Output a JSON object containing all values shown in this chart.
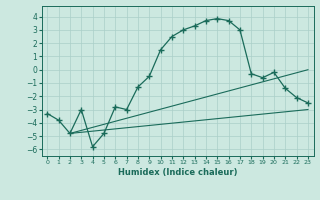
{
  "xlabel": "Humidex (Indice chaleur)",
  "ylabel": "",
  "xlim": [
    -0.5,
    23.5
  ],
  "ylim": [
    -6.5,
    4.8
  ],
  "xticks": [
    0,
    1,
    2,
    3,
    4,
    5,
    6,
    7,
    8,
    9,
    10,
    11,
    12,
    13,
    14,
    15,
    16,
    17,
    18,
    19,
    20,
    21,
    22,
    23
  ],
  "yticks": [
    -6,
    -5,
    -4,
    -3,
    -2,
    -1,
    0,
    1,
    2,
    3,
    4
  ],
  "bg_color": "#cce8e0",
  "line_color": "#1a6b5a",
  "grid_color": "#aacfc8",
  "main_x": [
    0,
    1,
    2,
    3,
    4,
    5,
    6,
    7,
    8,
    9,
    10,
    11,
    12,
    13,
    14,
    15,
    16,
    17,
    18,
    19,
    20,
    21,
    22,
    23
  ],
  "main_y": [
    -3.3,
    -3.8,
    -4.8,
    -3.0,
    -5.8,
    -4.8,
    -2.8,
    -3.0,
    -1.3,
    -0.5,
    1.5,
    2.5,
    3.0,
    3.3,
    3.7,
    3.85,
    3.7,
    3.0,
    -0.3,
    -0.6,
    -0.2,
    -1.4,
    -2.1,
    -2.5
  ],
  "line2_x": [
    2,
    23
  ],
  "line2_y": [
    -4.8,
    -3.0
  ],
  "line3_x": [
    2,
    23
  ],
  "line3_y": [
    -4.8,
    0.0
  ],
  "marker": "+"
}
